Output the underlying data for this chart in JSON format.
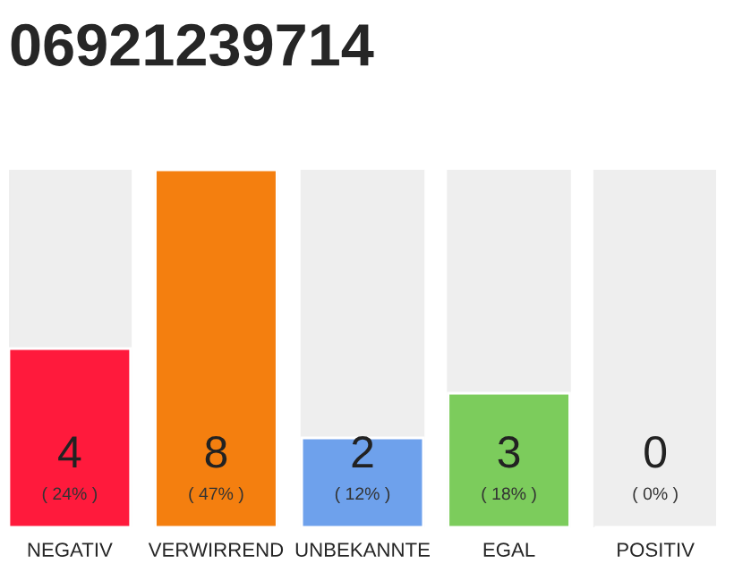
{
  "chart_data": {
    "type": "bar",
    "title": "06921239714",
    "categories": [
      "NEGATIV",
      "VERWIRREND",
      "UNBEKANNTE",
      "EGAL",
      "POSITIV"
    ],
    "values": [
      4,
      8,
      2,
      3,
      0
    ],
    "colors": [
      "#ff1a3c",
      "#f47f0f",
      "#6ea1ec",
      "#7ccc5c",
      null
    ],
    "value_labels": [
      "4\n( 24% )",
      "8\n( 47% )",
      "2\n( 12% )",
      "3\n( 18% )",
      "0\n( 0% )"
    ],
    "ylim": [
      0,
      8
    ],
    "grid": false,
    "legend": false
  }
}
